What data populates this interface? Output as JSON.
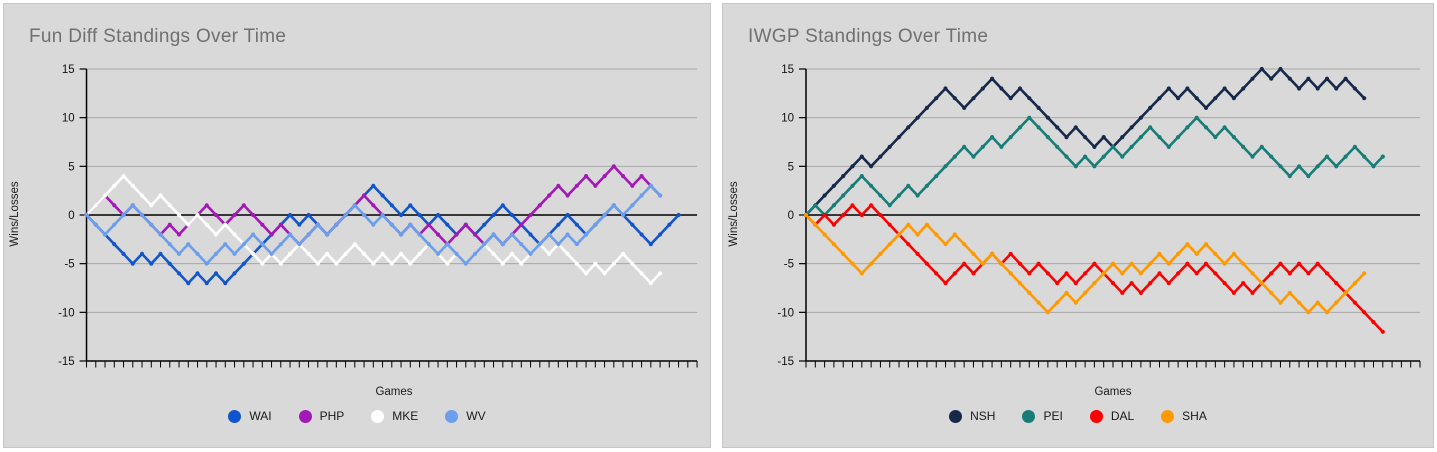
{
  "chart_data": [
    {
      "type": "line",
      "title": "Fun Diff Standings Over Time",
      "xlabel": "Games",
      "ylabel": "Wins/Losses",
      "ylim": [
        -15,
        15
      ],
      "yticks": [
        15,
        10,
        5,
        0,
        -5,
        -10,
        -15
      ],
      "x_start_value": 0,
      "grid": "horizontal gridlines every 5; bold black line at 0 and baseline at -15",
      "legend_position": "bottom",
      "panel_bg": "#d9d9d9",
      "gridline_color": "#a8a8a8",
      "axis_color": "#000000",
      "series": [
        {
          "name": "WAI",
          "color": "#1155cc",
          "values": [
            0,
            -1,
            -2,
            -3,
            -4,
            -5,
            -4,
            -5,
            -4,
            -5,
            -6,
            -7,
            -6,
            -7,
            -6,
            -7,
            -6,
            -5,
            -4,
            -3,
            -2,
            -1,
            0,
            -1,
            0,
            -1,
            -2,
            -1,
            0,
            1,
            2,
            3,
            2,
            1,
            0,
            1,
            0,
            -1,
            0,
            -1,
            -2,
            -1,
            -2,
            -1,
            0,
            1,
            0,
            -1,
            -2,
            -3,
            -2,
            -1,
            0,
            -1,
            -2,
            -1,
            0,
            1,
            0,
            -1,
            -2,
            -3,
            -2,
            -1,
            0
          ]
        },
        {
          "name": "PHP",
          "color": "#a219b5",
          "values": [
            0,
            1,
            2,
            1,
            0,
            1,
            0,
            -1,
            -2,
            -1,
            -2,
            -1,
            0,
            1,
            0,
            -1,
            0,
            1,
            0,
            -1,
            -2,
            -1,
            -2,
            -3,
            -2,
            -1,
            -2,
            -1,
            0,
            1,
            2,
            1,
            0,
            -1,
            -2,
            -1,
            -2,
            -1,
            -2,
            -3,
            -2,
            -1,
            -2,
            -3,
            -2,
            -3,
            -2,
            -1,
            0,
            1,
            2,
            3,
            2,
            3,
            4,
            3,
            4,
            5,
            4,
            3,
            4,
            3,
            2
          ]
        },
        {
          "name": "MKE",
          "color": "#ffffff",
          "values": [
            0,
            1,
            2,
            3,
            4,
            3,
            2,
            1,
            2,
            1,
            0,
            -1,
            0,
            -1,
            -2,
            -1,
            -2,
            -3,
            -4,
            -5,
            -4,
            -5,
            -4,
            -3,
            -4,
            -5,
            -4,
            -5,
            -4,
            -3,
            -4,
            -5,
            -4,
            -5,
            -4,
            -5,
            -4,
            -3,
            -4,
            -5,
            -4,
            -5,
            -4,
            -3,
            -4,
            -5,
            -4,
            -5,
            -4,
            -3,
            -4,
            -3,
            -4,
            -5,
            -6,
            -5,
            -6,
            -5,
            -4,
            -5,
            -6,
            -7,
            -6
          ]
        },
        {
          "name": "WV",
          "color": "#6d9eeb",
          "values": [
            0,
            -1,
            -2,
            -1,
            0,
            1,
            0,
            -1,
            -2,
            -3,
            -4,
            -3,
            -4,
            -5,
            -4,
            -3,
            -4,
            -3,
            -2,
            -3,
            -4,
            -3,
            -2,
            -3,
            -2,
            -1,
            -2,
            -1,
            0,
            1,
            0,
            -1,
            0,
            -1,
            -2,
            -1,
            -2,
            -3,
            -4,
            -3,
            -4,
            -5,
            -4,
            -3,
            -2,
            -3,
            -2,
            -3,
            -4,
            -3,
            -2,
            -3,
            -2,
            -3,
            -2,
            -1,
            0,
            1,
            0,
            1,
            2,
            3,
            2
          ]
        }
      ]
    },
    {
      "type": "line",
      "title": "IWGP Standings Over Time",
      "xlabel": "Games",
      "ylabel": "Wins/Losses",
      "ylim": [
        -15,
        15
      ],
      "yticks": [
        15,
        10,
        5,
        0,
        -5,
        -10,
        -15
      ],
      "x_start_value": 0,
      "grid": "horizontal gridlines every 5; bold black line at 0 and baseline at -15",
      "legend_position": "bottom",
      "panel_bg": "#d9d9d9",
      "gridline_color": "#a8a8a8",
      "axis_color": "#000000",
      "series": [
        {
          "name": "NSH",
          "color": "#17294a",
          "values": [
            0,
            1,
            2,
            3,
            4,
            5,
            6,
            5,
            6,
            7,
            8,
            9,
            10,
            11,
            12,
            13,
            12,
            11,
            12,
            13,
            14,
            13,
            12,
            13,
            12,
            11,
            10,
            9,
            8,
            9,
            8,
            7,
            8,
            7,
            8,
            9,
            10,
            11,
            12,
            13,
            12,
            13,
            12,
            11,
            12,
            13,
            12,
            13,
            14,
            15,
            14,
            15,
            14,
            13,
            14,
            13,
            14,
            13,
            14,
            13,
            12
          ]
        },
        {
          "name": "PEI",
          "color": "#177d76",
          "values": [
            0,
            1,
            0,
            1,
            2,
            3,
            4,
            3,
            2,
            1,
            2,
            3,
            2,
            3,
            4,
            5,
            6,
            7,
            6,
            7,
            8,
            7,
            8,
            9,
            10,
            9,
            8,
            7,
            6,
            5,
            6,
            5,
            6,
            7,
            6,
            7,
            8,
            9,
            8,
            7,
            8,
            9,
            10,
            9,
            8,
            9,
            8,
            7,
            6,
            7,
            6,
            5,
            4,
            5,
            4,
            5,
            6,
            5,
            6,
            7,
            6,
            5,
            6
          ]
        },
        {
          "name": "DAL",
          "color": "#fb0000",
          "values": [
            0,
            -1,
            0,
            -1,
            0,
            1,
            0,
            1,
            0,
            -1,
            -2,
            -3,
            -4,
            -5,
            -6,
            -7,
            -6,
            -5,
            -6,
            -5,
            -4,
            -5,
            -4,
            -5,
            -6,
            -5,
            -6,
            -7,
            -6,
            -7,
            -6,
            -5,
            -6,
            -7,
            -8,
            -7,
            -8,
            -7,
            -6,
            -7,
            -6,
            -5,
            -6,
            -5,
            -6,
            -7,
            -8,
            -7,
            -8,
            -7,
            -6,
            -5,
            -6,
            -5,
            -6,
            -5,
            -6,
            -7,
            -8,
            -9,
            -10,
            -11,
            -12
          ]
        },
        {
          "name": "SHA",
          "color": "#ff9900",
          "values": [
            0,
            -1,
            -2,
            -3,
            -4,
            -5,
            -6,
            -5,
            -4,
            -3,
            -2,
            -1,
            -2,
            -1,
            -2,
            -3,
            -2,
            -3,
            -4,
            -5,
            -4,
            -5,
            -6,
            -7,
            -8,
            -9,
            -10,
            -9,
            -8,
            -9,
            -8,
            -7,
            -6,
            -5,
            -6,
            -5,
            -6,
            -5,
            -4,
            -5,
            -4,
            -3,
            -4,
            -3,
            -4,
            -5,
            -4,
            -5,
            -6,
            -7,
            -8,
            -9,
            -8,
            -9,
            -10,
            -9,
            -10,
            -9,
            -8,
            -7,
            -6
          ]
        }
      ]
    }
  ]
}
